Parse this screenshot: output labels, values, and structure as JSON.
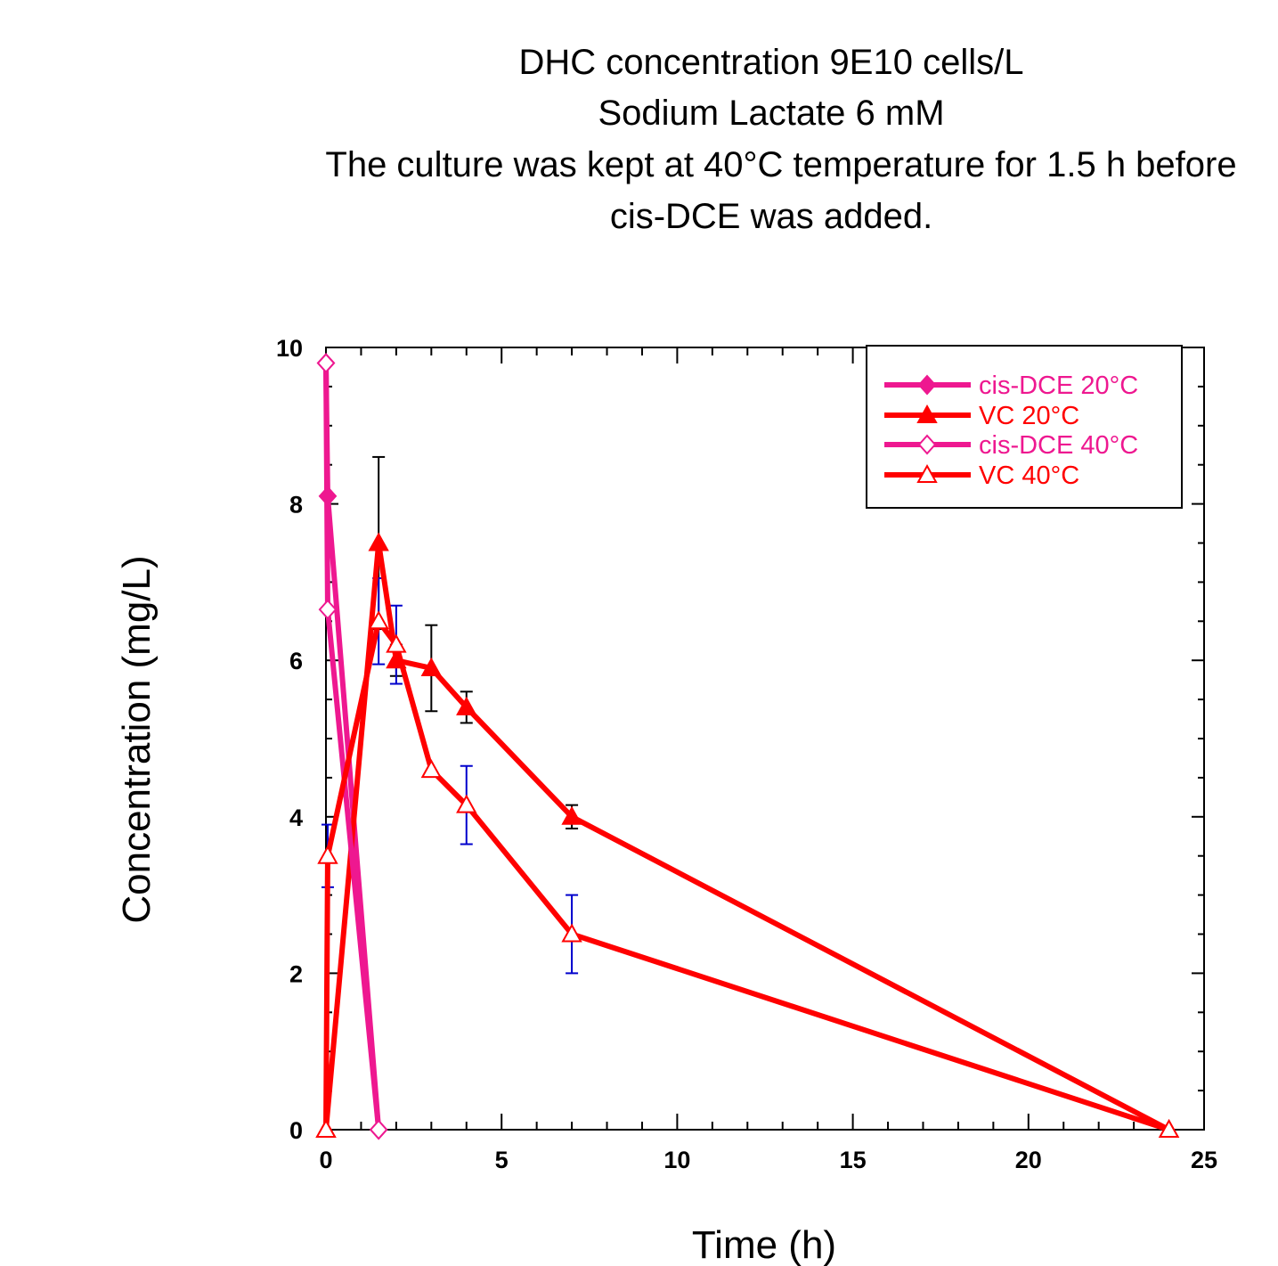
{
  "chart_data": {
    "type": "line",
    "title_lines": [
      "DHC concentration 9E10 cells/L",
      "Sodium Lactate 6 mM",
      "The culture was kept at 40°C temperature for 1.5 h before",
      "cis-DCE was added."
    ],
    "xlabel": "Time (h)",
    "ylabel": "Concentration (mg/L)",
    "xlim": [
      0,
      25
    ],
    "ylim": [
      0,
      10
    ],
    "xticks": [
      0,
      5,
      10,
      15,
      20,
      25
    ],
    "yticks": [
      0,
      2,
      4,
      6,
      8,
      10
    ],
    "legend_position": "top-right",
    "grid": false,
    "series": [
      {
        "name": "cis-DCE 20°C",
        "color": "#ee1890",
        "marker": "diamond-filled",
        "x": [
          0,
          0.05,
          1.5
        ],
        "y": [
          9.8,
          8.1,
          0
        ]
      },
      {
        "name": "VC 20°C",
        "color": "#ff0000",
        "marker": "triangle-filled",
        "x": [
          0,
          1.5,
          2,
          3,
          4,
          7,
          24
        ],
        "y": [
          0,
          7.5,
          6.0,
          5.9,
          5.4,
          4.0,
          0
        ],
        "err": [
          0,
          1.1,
          0.2,
          0.55,
          0.2,
          0.15,
          0
        ],
        "err_color": "#000000"
      },
      {
        "name": "cis-DCE 40°C",
        "color": "#ee1890",
        "marker": "diamond-open",
        "x": [
          0,
          0.05,
          1.5
        ],
        "y": [
          9.8,
          6.65,
          0
        ]
      },
      {
        "name": "VC 40°C",
        "color": "#ff0000",
        "marker": "triangle-open",
        "x": [
          0,
          0.05,
          1.5,
          2,
          3,
          4,
          7,
          24
        ],
        "y": [
          0,
          3.5,
          6.5,
          6.2,
          4.6,
          4.15,
          2.5,
          0
        ],
        "err": [
          0,
          0.4,
          0.55,
          0.5,
          0,
          0.5,
          0.5,
          0
        ],
        "err_color": "#0000cc"
      }
    ]
  }
}
